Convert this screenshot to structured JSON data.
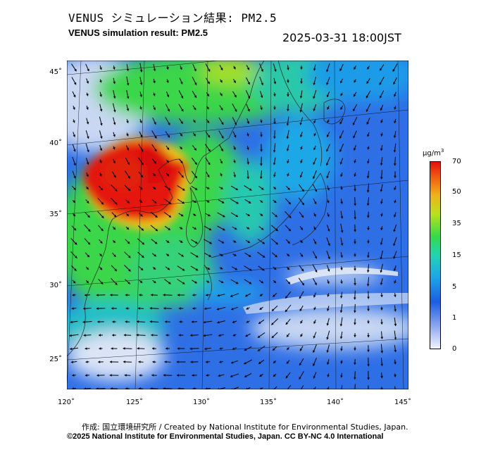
{
  "title_jp": "VENUS シミュレーション結果: PM2.5",
  "title_en": "VENUS simulation result: PM2.5",
  "timestamp": "2025-03-31 18:00JST",
  "lat_labels": [
    "45˚",
    "40˚",
    "35˚",
    "30˚",
    "25˚"
  ],
  "lon_labels": [
    "120˚",
    "125˚",
    "130˚",
    "135˚",
    "140˚",
    "145˚"
  ],
  "colorbar": {
    "unit": "μg/m",
    "unit_sup": "3",
    "ticks": [
      "70",
      "50",
      "35",
      "15",
      "5",
      "1",
      "0"
    ],
    "colors": [
      "#d7e2f5",
      "#1b5ee0",
      "#1fa3e8",
      "#22d3b3",
      "#35d94b",
      "#b8e21f",
      "#f0b21b",
      "#f05a10",
      "#e11010"
    ]
  },
  "credit_line1": "作成: 国立環境研究所 / Created by National Institute for Environmental Studies, Japan.",
  "credit_line2": "©2025 National Institute for Environmental Studies, Japan. CC BY-NC 4.0 International"
}
